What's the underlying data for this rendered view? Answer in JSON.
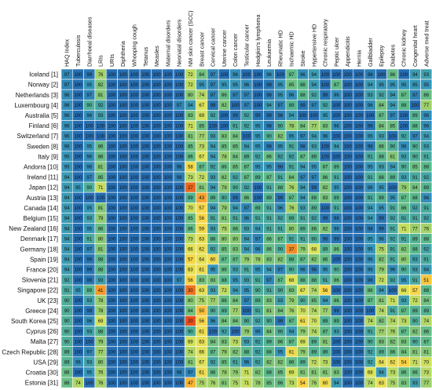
{
  "chart_data": {
    "type": "heatmap",
    "columns": [
      "HAQ Index",
      "Tuberculosis",
      "Diarrhoeal diseases",
      "LRIs",
      "URIs",
      "Diphtheria",
      "Whooping cough",
      "Tetanus",
      "Measles",
      "Maternal disorders",
      "Neonatal disorders",
      "NM skin cancer (SCC)",
      "Breast cancer",
      "Cervical cancer",
      "Uterine cancer",
      "Colon cancer",
      "Testicular cancer",
      "Hodgkin's lymphoma",
      "Leukaemia",
      "Rheumatic HD",
      "Ischaemic HD",
      "Stroke",
      "Hypertensive HD",
      "Chronic respiratory",
      "Peptic ulcer",
      "Appendicitis",
      "Hernia",
      "Gallbladder",
      "Epilepsy",
      "Diabetes",
      "Chronic kidney",
      "Congenital heart",
      "Adverse med treat"
    ],
    "rows": [
      "Iceland [1]",
      "Norway [2]",
      "Netherlands [3]",
      "Luxembourg [4]",
      "Australia [5]",
      "Finland [6]",
      "Switzerland [7]",
      "Sweden [8]",
      "Italy [9]",
      "Andorra [10]",
      "Ireland [11]",
      "Japan [12]",
      "Austria [13]",
      "Canada [14]",
      "Belgium [15]",
      "New Zealand [16]",
      "Denmark [17]",
      "Germany [18]",
      "Spain [19]",
      "France [20]",
      "Slovenia [21]",
      "Singapore [22]",
      "UK [23]",
      "Greece [24]",
      "South Korea [25]",
      "Cyprus [26]",
      "Malta [27]",
      "Czech Republic [28]",
      "USA [29]",
      "Croatia [30]",
      "Estonia [31]"
    ],
    "values": [
      [
        97,
        100,
        99,
        76,
        100,
        100,
        100,
        100,
        100,
        100,
        100,
        72,
        84,
        97,
        100,
        96,
        100,
        100,
        96,
        100,
        87,
        96,
        94,
        100,
        100,
        100,
        100,
        98,
        100,
        86,
        100,
        94,
        93
      ],
      [
        97,
        100,
        95,
        82,
        100,
        100,
        100,
        100,
        100,
        100,
        100,
        72,
        95,
        97,
        95,
        95,
        96,
        100,
        99,
        95,
        85,
        88,
        94,
        100,
        87,
        100,
        100,
        94,
        95,
        95,
        95,
        95,
        95
      ],
      [
        96,
        100,
        97,
        81,
        100,
        100,
        100,
        100,
        100,
        100,
        100,
        80,
        74,
        97,
        86,
        97,
        97,
        100,
        98,
        95,
        96,
        88,
        92,
        99,
        96,
        100,
        100,
        93,
        92,
        94,
        87,
        97,
        86
      ],
      [
        96,
        100,
        90,
        92,
        100,
        100,
        100,
        100,
        100,
        100,
        97,
        94,
        67,
        99,
        82,
        100,
        97,
        100,
        94,
        97,
        89,
        99,
        97,
        92,
        100,
        100,
        100,
        96,
        84,
        94,
        88,
        100,
        77
      ],
      [
        96,
        100,
        96,
        93,
        100,
        100,
        100,
        100,
        100,
        100,
        100,
        83,
        69,
        92,
        100,
        99,
        92,
        99,
        99,
        98,
        94,
        100,
        100,
        95,
        100,
        100,
        100,
        100,
        87,
        97,
        100,
        89,
        96
      ],
      [
        96,
        100,
        100,
        100,
        100,
        100,
        100,
        100,
        100,
        100,
        100,
        71,
        85,
        100,
        100,
        91,
        92,
        95,
        98,
        90,
        78,
        84,
        77,
        83,
        96,
        100,
        100,
        99,
        84,
        85,
        100,
        88,
        96
      ],
      [
        96,
        100,
        100,
        100,
        100,
        100,
        100,
        100,
        100,
        100,
        100,
        81,
        77,
        93,
        83,
        84,
        100,
        95,
        90,
        82,
        95,
        97,
        94,
        96,
        100,
        100,
        100,
        95,
        93,
        100,
        92,
        97,
        94
      ],
      [
        96,
        100,
        95,
        86,
        100,
        100,
        100,
        100,
        100,
        100,
        100,
        85,
        73,
        94,
        85,
        85,
        94,
        95,
        98,
        95,
        91,
        98,
        93,
        100,
        94,
        100,
        100,
        98,
        86,
        90,
        96,
        90,
        93
      ],
      [
        95,
        100,
        96,
        86,
        100,
        100,
        100,
        100,
        100,
        100,
        100,
        86,
        67,
        94,
        78,
        84,
        89,
        92,
        86,
        92,
        92,
        87,
        89,
        100,
        100,
        100,
        100,
        91,
        88,
        81,
        93,
        90,
        91
      ],
      [
        95,
        100,
        96,
        81,
        100,
        100,
        100,
        100,
        100,
        100,
        98,
        58,
        87,
        92,
        86,
        85,
        87,
        95,
        95,
        98,
        91,
        94,
        95,
        87,
        89,
        100,
        100,
        95,
        93,
        94,
        90,
        85,
        88
      ],
      [
        94,
        100,
        97,
        85,
        100,
        100,
        100,
        100,
        100,
        100,
        98,
        73,
        72,
        93,
        82,
        92,
        87,
        89,
        87,
        91,
        84,
        97,
        97,
        86,
        91,
        100,
        100,
        91,
        88,
        89,
        93,
        91,
        92
      ],
      [
        94,
        95,
        90,
        71,
        100,
        100,
        100,
        100,
        100,
        100,
        100,
        27,
        81,
        94,
        79,
        90,
        92,
        100,
        91,
        88,
        76,
        94,
        99,
        82,
        95,
        100,
        100,
        96,
        95,
        100,
        79,
        84,
        89
      ],
      [
        94,
        100,
        100,
        100,
        100,
        100,
        100,
        100,
        100,
        100,
        100,
        89,
        43,
        89,
        90,
        99,
        86,
        100,
        89,
        99,
        87,
        94,
        88,
        83,
        89,
        100,
        100,
        91,
        89,
        95,
        87,
        88,
        96
      ],
      [
        94,
        100,
        95,
        81,
        100,
        100,
        100,
        100,
        100,
        100,
        100,
        70,
        57,
        94,
        79,
        94,
        97,
        89,
        91,
        96,
        76,
        93,
        89,
        100,
        91,
        100,
        100,
        94,
        95,
        91,
        86,
        92,
        91
      ],
      [
        94,
        100,
        93,
        79,
        100,
        100,
        100,
        100,
        100,
        100,
        100,
        85,
        56,
        91,
        81,
        91,
        96,
        91,
        91,
        92,
        89,
        91,
        92,
        99,
        98,
        100,
        100,
        94,
        99,
        92,
        91,
        91,
        92
      ],
      [
        94,
        100,
        95,
        86,
        100,
        100,
        100,
        100,
        100,
        100,
        100,
        86,
        59,
        93,
        75,
        86,
        93,
        94,
        91,
        91,
        80,
        89,
        86,
        82,
        96,
        100,
        100,
        98,
        99,
        91,
        71,
        77,
        76
      ],
      [
        94,
        100,
        91,
        80,
        100,
        100,
        100,
        100,
        100,
        100,
        100,
        73,
        63,
        88,
        80,
        80,
        94,
        97,
        86,
        87,
        91,
        91,
        90,
        98,
        99,
        100,
        100,
        95,
        96,
        92,
        91,
        89,
        88
      ],
      [
        94,
        100,
        97,
        81,
        100,
        100,
        100,
        100,
        100,
        100,
        100,
        66,
        62,
        92,
        85,
        83,
        94,
        96,
        86,
        90,
        37,
        79,
        68,
        89,
        86,
        100,
        100,
        95,
        75,
        91,
        82,
        88,
        92
      ],
      [
        94,
        100,
        99,
        88,
        100,
        100,
        100,
        100,
        100,
        100,
        100,
        57,
        64,
        60,
        87,
        87,
        79,
        78,
        83,
        82,
        88,
        87,
        82,
        86,
        100,
        100,
        100,
        96,
        82,
        91,
        80,
        93,
        91
      ],
      [
        94,
        100,
        99,
        88,
        100,
        100,
        100,
        100,
        100,
        100,
        100,
        63,
        61,
        95,
        86,
        93,
        91,
        95,
        94,
        97,
        90,
        96,
        98,
        95,
        90,
        100,
        100,
        96,
        79,
        96,
        90,
        93,
        94
      ],
      [
        92,
        100,
        99,
        93,
        100,
        100,
        100,
        100,
        100,
        100,
        97,
        56,
        83,
        83,
        88,
        95,
        93,
        91,
        97,
        87,
        68,
        88,
        88,
        91,
        86,
        100,
        100,
        98,
        72,
        92,
        95,
        91,
        51
      ],
      [
        91,
        95,
        89,
        41,
        100,
        100,
        100,
        100,
        100,
        100,
        100,
        30,
        63,
        93,
        72,
        94,
        95,
        90,
        91,
        90,
        83,
        67,
        74,
        56,
        100,
        100,
        100,
        86,
        94,
        100,
        66,
        57,
        88
      ],
      [
        90,
        100,
        93,
        78,
        100,
        100,
        100,
        100,
        100,
        100,
        100,
        80,
        75,
        77,
        86,
        84,
        97,
        89,
        83,
        93,
        79,
        90,
        85,
        94,
        86,
        100,
        100,
        87,
        81,
        71,
        93,
        72,
        84
      ],
      [
        90,
        100,
        99,
        78,
        100,
        100,
        100,
        100,
        100,
        100,
        100,
        84,
        50,
        90,
        89,
        77,
        100,
        91,
        81,
        84,
        76,
        70,
        74,
        77,
        99,
        100,
        100,
        100,
        74,
        91,
        87,
        89,
        89
      ],
      [
        90,
        100,
        96,
        69,
        100,
        100,
        100,
        100,
        100,
        100,
        100,
        20,
        56,
        96,
        84,
        84,
        90,
        92,
        90,
        99,
        87,
        61,
        70,
        89,
        89,
        100,
        100,
        74,
        82,
        74,
        73,
        90,
        74
      ],
      [
        90,
        100,
        93,
        88,
        100,
        100,
        100,
        100,
        100,
        100,
        100,
        90,
        61,
        100,
        92,
        100,
        79,
        96,
        84,
        90,
        94,
        79,
        74,
        87,
        93,
        100,
        100,
        91,
        77,
        76,
        87,
        82,
        86
      ],
      [
        90,
        100,
        100,
        79,
        100,
        100,
        100,
        100,
        100,
        100,
        100,
        69,
        63,
        84,
        83,
        73,
        93,
        92,
        89,
        86,
        87,
        69,
        89,
        81,
        100,
        100,
        100,
        90,
        83,
        82,
        83,
        90,
        87
      ],
      [
        89,
        100,
        97,
        77,
        100,
        100,
        100,
        100,
        100,
        100,
        100,
        74,
        66,
        87,
        79,
        82,
        88,
        92,
        88,
        95,
        61,
        79,
        89,
        89,
        100,
        100,
        100,
        92,
        89,
        86,
        84,
        81,
        81
      ],
      [
        89,
        96,
        93,
        80,
        100,
        100,
        100,
        100,
        100,
        100,
        100,
        81,
        67,
        92,
        85,
        91,
        96,
        92,
        82,
        82,
        86,
        89,
        72,
        73,
        100,
        100,
        100,
        92,
        64,
        62,
        54,
        71,
        70
      ],
      [
        86,
        100,
        95,
        76,
        100,
        100,
        100,
        100,
        100,
        100,
        98,
        97,
        61,
        86,
        78,
        79,
        71,
        82,
        88,
        85,
        69,
        81,
        81,
        81,
        83,
        100,
        100,
        68,
        94,
        73,
        86,
        86,
        73
      ],
      [
        86,
        74,
        100,
        76,
        100,
        100,
        100,
        100,
        100,
        100,
        100,
        47,
        75,
        76,
        81,
        75,
        71,
        78,
        85,
        86,
        73,
        54,
        76,
        60,
        94,
        100,
        100,
        74,
        63,
        75,
        83,
        93,
        77
      ]
    ]
  }
}
